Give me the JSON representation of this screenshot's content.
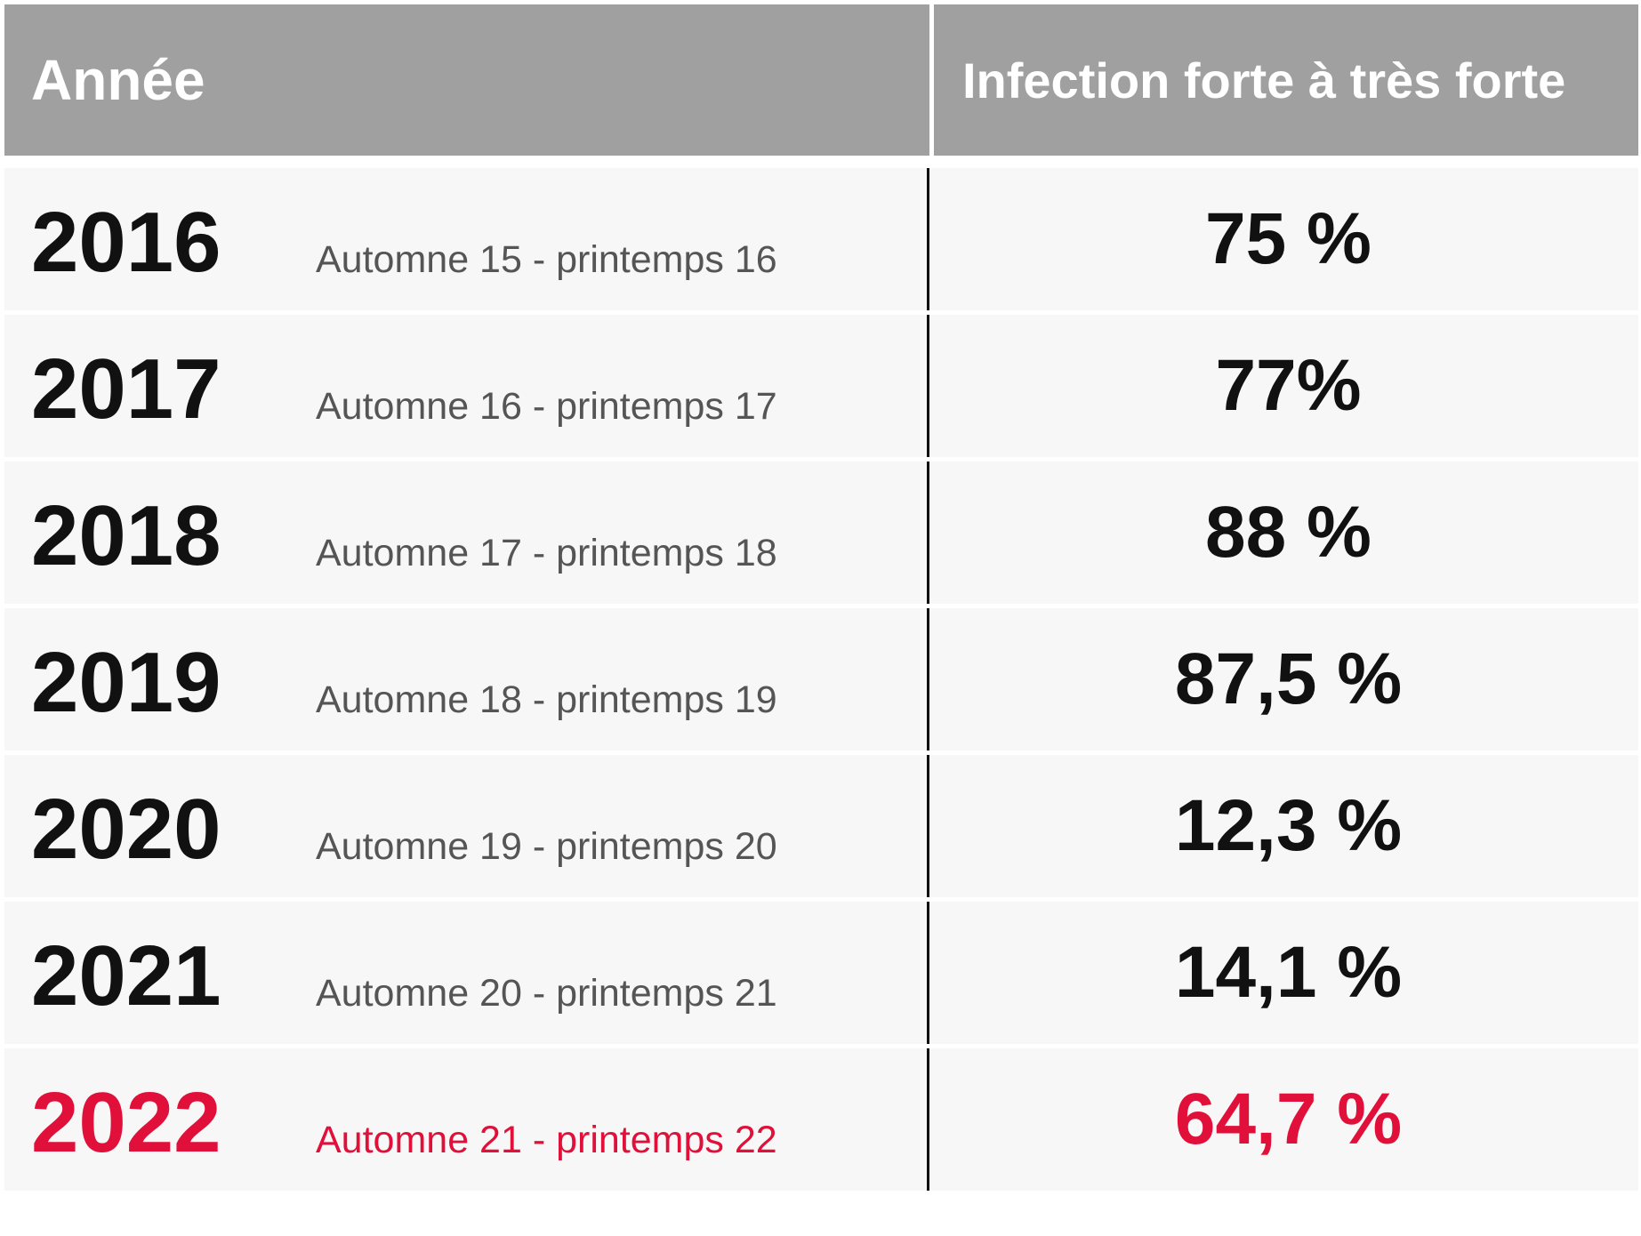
{
  "header": {
    "year_label": "Année",
    "infection_label": "Infection forte à très forte"
  },
  "rows": [
    {
      "year": "2016",
      "period": "Automne 15 - printemps 16",
      "value": "75 %"
    },
    {
      "year": "2017",
      "period": "Automne 16 - printemps 17",
      "value": "77%"
    },
    {
      "year": "2018",
      "period": "Automne 17 - printemps 18",
      "value": "88 %"
    },
    {
      "year": "2019",
      "period": "Automne 18 - printemps 19",
      "value": "87,5 %"
    },
    {
      "year": "2020",
      "period": "Automne 19 - printemps 20",
      "value": "12,3 %"
    },
    {
      "year": "2021",
      "period": "Automne 20 - printemps 21",
      "value": "14,1 %"
    },
    {
      "year": "2022",
      "period": "Automne 21 - printemps 22",
      "value": "64,7 %"
    }
  ],
  "colors": {
    "header_bg": "#a0a0a0",
    "row_bg": "#f7f7f7",
    "text": "#111111",
    "period_text": "#555555",
    "highlight": "#e0103a"
  }
}
